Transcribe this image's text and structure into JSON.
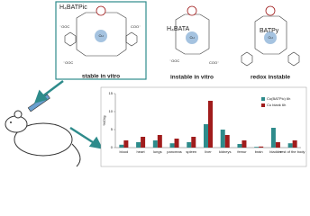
{
  "molecules": [
    {
      "label": "H₄BATPic",
      "caption": "stable in vitro",
      "metal": "Cu",
      "ligands": [
        "⁻OOC",
        "COO⁻",
        "⁻OOC"
      ]
    },
    {
      "label": "H₄BATA",
      "caption": "instable in vitro",
      "metal": "Cu",
      "ligands": [
        "⁻OOC",
        "COO⁻"
      ]
    },
    {
      "label": "BATPy",
      "caption": "redox instable",
      "metal": "Cu",
      "ligands": []
    }
  ],
  "chart_data": {
    "type": "bar",
    "y_label": "%ID/g",
    "categories": [
      "blood",
      "heart",
      "lungs",
      "pancreas",
      "spleen",
      "liver",
      "kidneys",
      "femur",
      "brain",
      "bladder",
      "rest of the body"
    ],
    "series": [
      {
        "name": "Cu(BATPic) 6h",
        "color": "#2e8b8b",
        "values": [
          0.8,
          1.5,
          2,
          1.2,
          1.5,
          6.5,
          5,
          1,
          0.2,
          5.5,
          1.2
        ]
      },
      {
        "name": "Cu blank 6h",
        "color": "#a01c1c",
        "values": [
          2,
          3,
          3.5,
          2.5,
          3,
          13,
          3.5,
          2,
          0.3,
          1.5,
          2
        ]
      }
    ],
    "ylim": [
      0,
      15
    ],
    "yticks": [
      0,
      5,
      10,
      15
    ],
    "legend": "upper right"
  }
}
